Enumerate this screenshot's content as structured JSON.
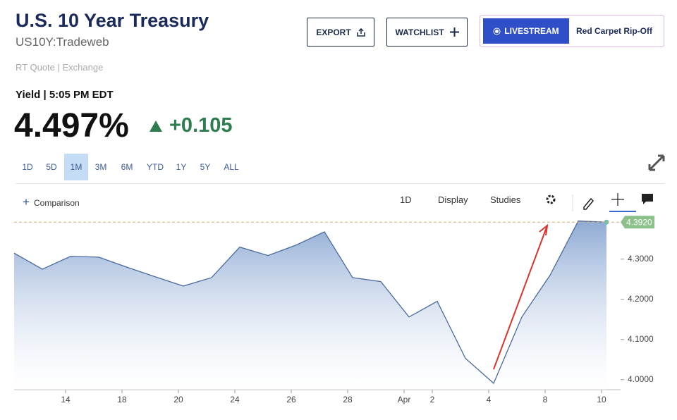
{
  "header": {
    "title": "U.S. 10 Year Treasury",
    "symbol": "US10Y:Tradeweb",
    "source": "RT Quote | Exchange"
  },
  "buttons": {
    "export": "EXPORT",
    "watchlist": "WATCHLIST",
    "livestream": "LIVESTREAM",
    "promo": "Red Carpet Rip-Off"
  },
  "quote": {
    "label": "Yield | 5:05 PM EDT",
    "price": "4.497%",
    "change": "+0.105"
  },
  "ranges": [
    "1D",
    "5D",
    "1M",
    "3M",
    "6M",
    "YTD",
    "1Y",
    "5Y",
    "ALL"
  ],
  "selected_range": 2,
  "toolbar": {
    "comparison": "Comparison",
    "interval": "1D",
    "display": "Display",
    "studies": "Studies"
  },
  "chart_data": {
    "type": "area",
    "categories": [
      null,
      null,
      "14",
      null,
      "18",
      null,
      "20",
      null,
      "24",
      null,
      "26",
      null,
      "28",
      null,
      "Apr",
      "2",
      null,
      "4",
      null,
      "8",
      null,
      "10"
    ],
    "series": [
      {
        "name": "US10Y",
        "color": "#4a6a9c",
        "values": [
          4.315,
          4.275,
          4.307,
          4.305,
          4.28,
          4.256,
          4.233,
          4.254,
          4.33,
          4.309,
          4.335,
          4.368,
          4.254,
          4.244,
          4.156,
          4.195,
          4.053,
          3.991,
          4.156,
          4.26,
          4.395,
          4.392
        ]
      }
    ],
    "ylim": [
      3.975,
      4.41
    ],
    "yticks": [
      {
        "value": 4.0,
        "label": "4.0000"
      },
      {
        "value": 4.1,
        "label": "4.1000"
      },
      {
        "value": 4.2,
        "label": "4.2000"
      },
      {
        "value": 4.3,
        "label": "4.3000"
      }
    ],
    "last_price": {
      "value": 4.392,
      "label": "4.3920"
    },
    "grid": true
  }
}
